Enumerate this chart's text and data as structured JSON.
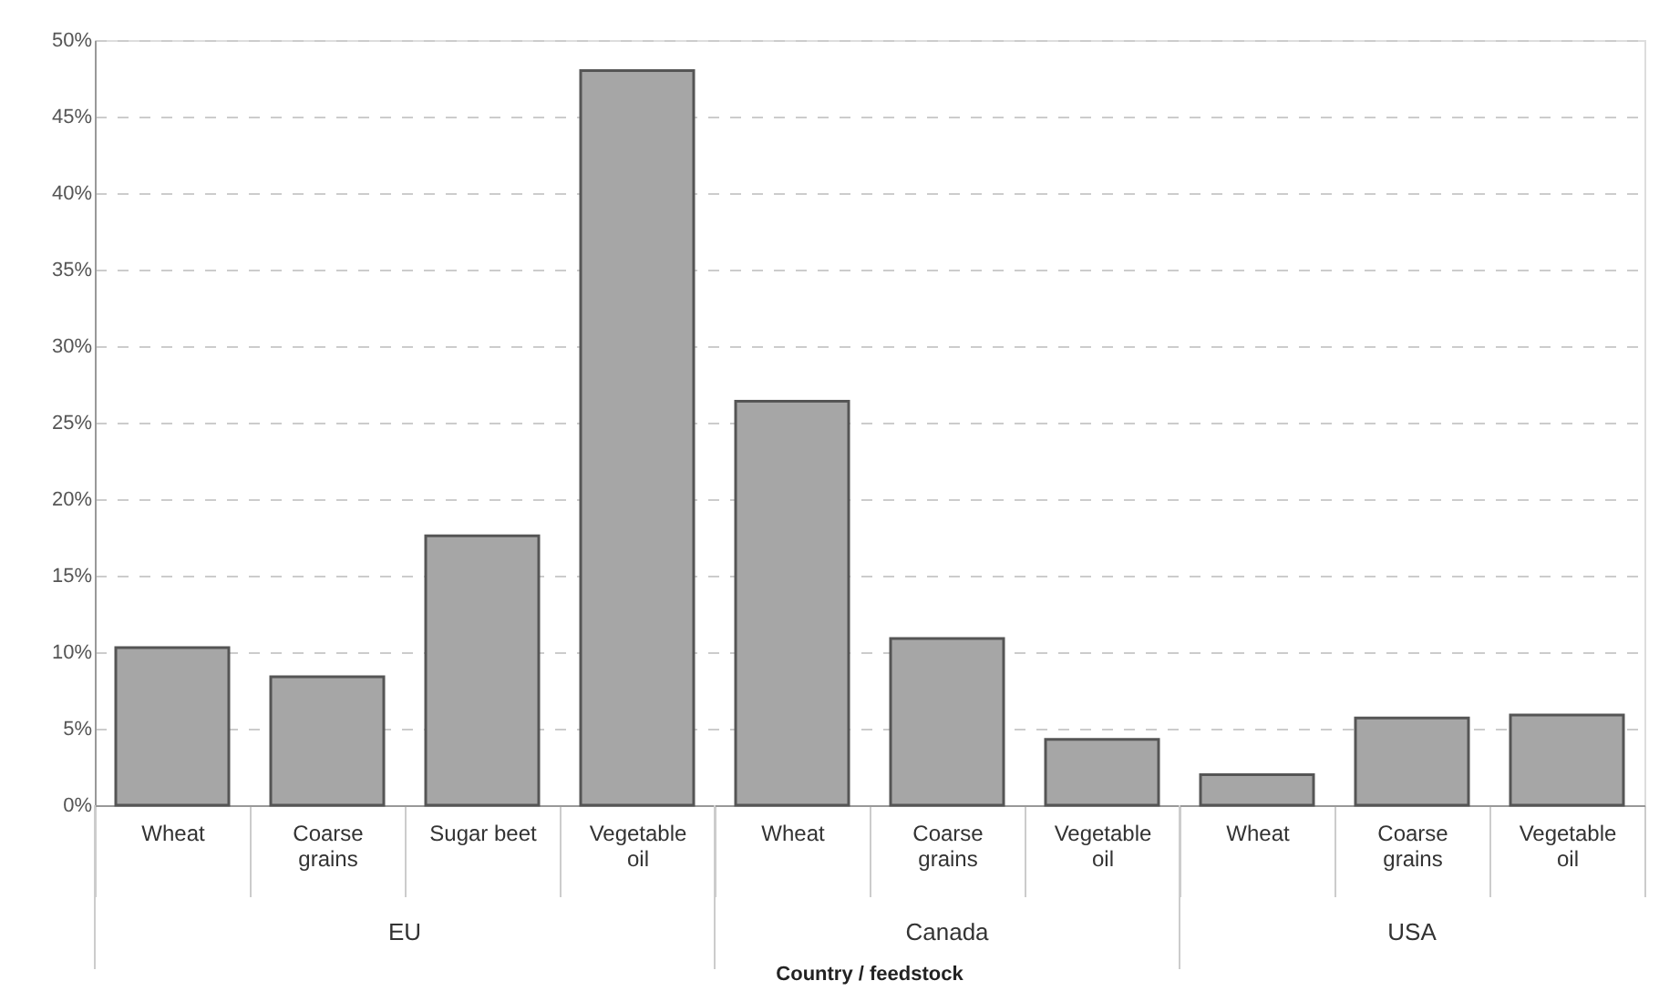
{
  "chart_data": {
    "type": "bar",
    "xlabel": "Country / feedstock",
    "categories": [
      "Wheat",
      "Coarse grains",
      "Sugar beet",
      "Vegetable oil",
      "Wheat",
      "Coarse grains",
      "Vegetable oil",
      "Wheat",
      "Coarse grains",
      "Vegetable oil"
    ],
    "values": [
      10.3,
      8.4,
      17.6,
      48.0,
      26.4,
      10.9,
      4.3,
      2.0,
      5.7,
      5.9
    ],
    "color": "#a6a6a6",
    "annotations": [
      "EU",
      "Canada",
      "USA"
    ],
    "ylim": [
      0,
      50
    ],
    "yticks": [
      {
        "value": 0,
        "label": "0%"
      },
      {
        "value": 5,
        "label": "5%"
      },
      {
        "value": 10,
        "label": "10%"
      },
      {
        "value": 15,
        "label": "15%"
      },
      {
        "value": 20,
        "label": "20%"
      },
      {
        "value": 25,
        "label": "25%"
      },
      {
        "value": 30,
        "label": "30%"
      },
      {
        "value": 35,
        "label": "35%"
      },
      {
        "value": 40,
        "label": "40%"
      },
      {
        "value": 45,
        "label": "45%"
      },
      {
        "value": 50,
        "label": "50%"
      }
    ],
    "grid": "y"
  }
}
